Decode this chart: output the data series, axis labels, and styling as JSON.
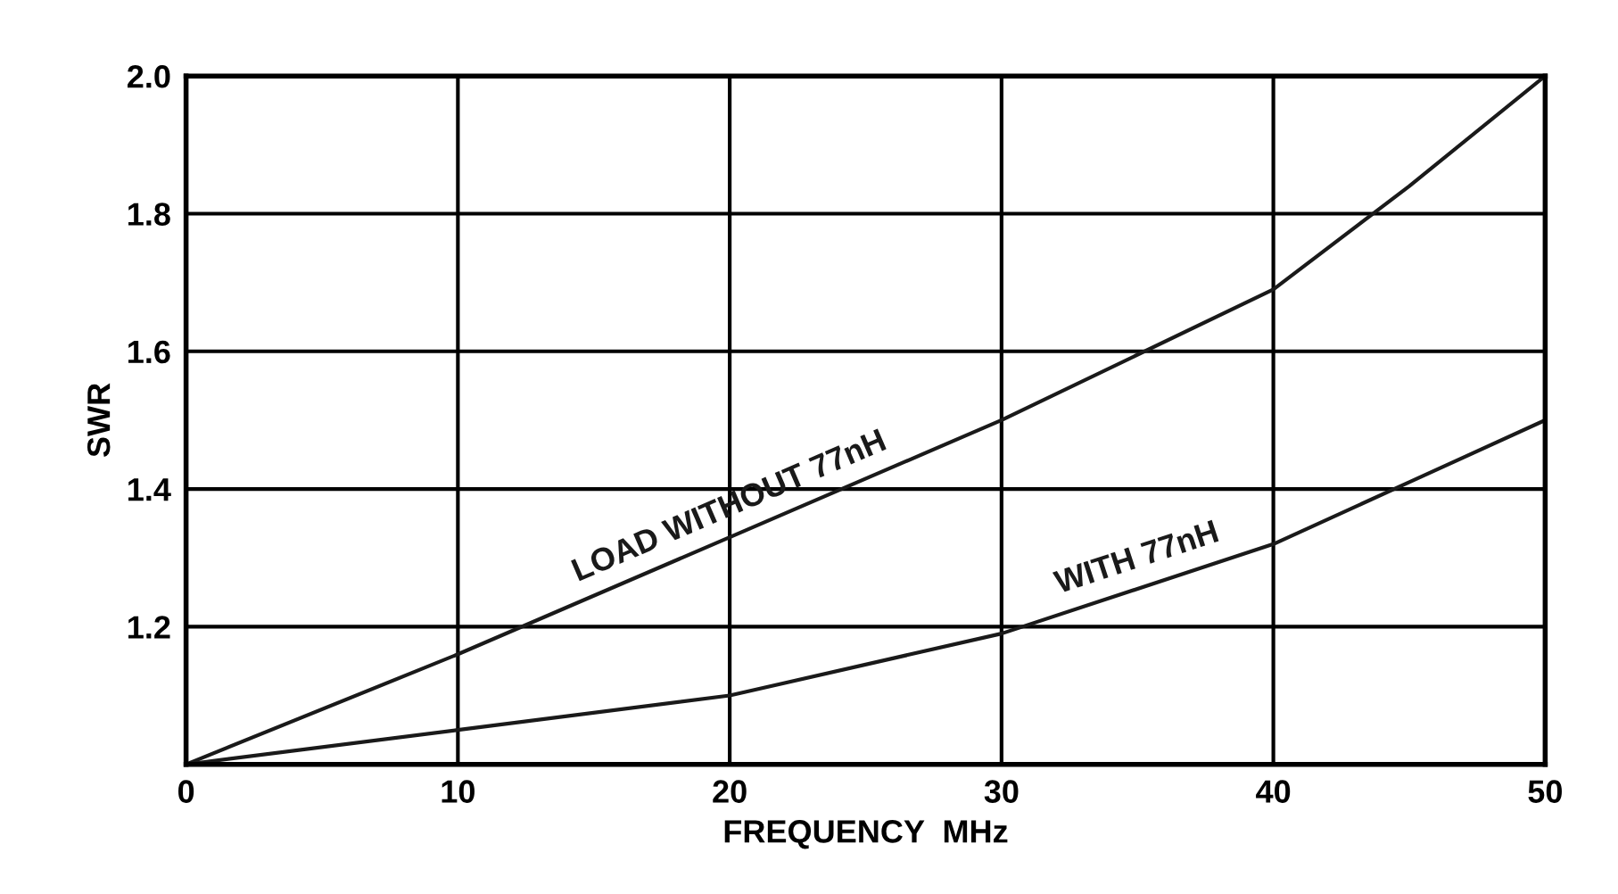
{
  "chart_data": {
    "type": "line",
    "xlabel": "FREQUENCY  MHz",
    "ylabel": "SWR",
    "xlim": [
      0,
      50
    ],
    "xticks": [
      0,
      10,
      20,
      30,
      40,
      50
    ],
    "ylim": [
      1.0,
      2.0
    ],
    "yticks": [
      1.2,
      1.4,
      1.6,
      1.8,
      {
        "value": 2,
        "label": "2.0"
      }
    ],
    "grid": true,
    "legend": false,
    "marker": "none",
    "line_style": "solid",
    "series": [
      {
        "name": "LOAD WITHOUT 77nH",
        "color": "#1a1a1a",
        "x": [
          0,
          10,
          20,
          30,
          40,
          45,
          50
        ],
        "values": [
          1.0,
          1.16,
          1.33,
          1.5,
          1.69,
          1.84,
          2.0
        ]
      },
      {
        "name": "WITH 77nH",
        "color": "#1a1a1a",
        "x": [
          0,
          10,
          20,
          30,
          40,
          45,
          50
        ],
        "values": [
          1.0,
          1.05,
          1.1,
          1.19,
          1.32,
          1.41,
          1.5
        ]
      }
    ]
  }
}
